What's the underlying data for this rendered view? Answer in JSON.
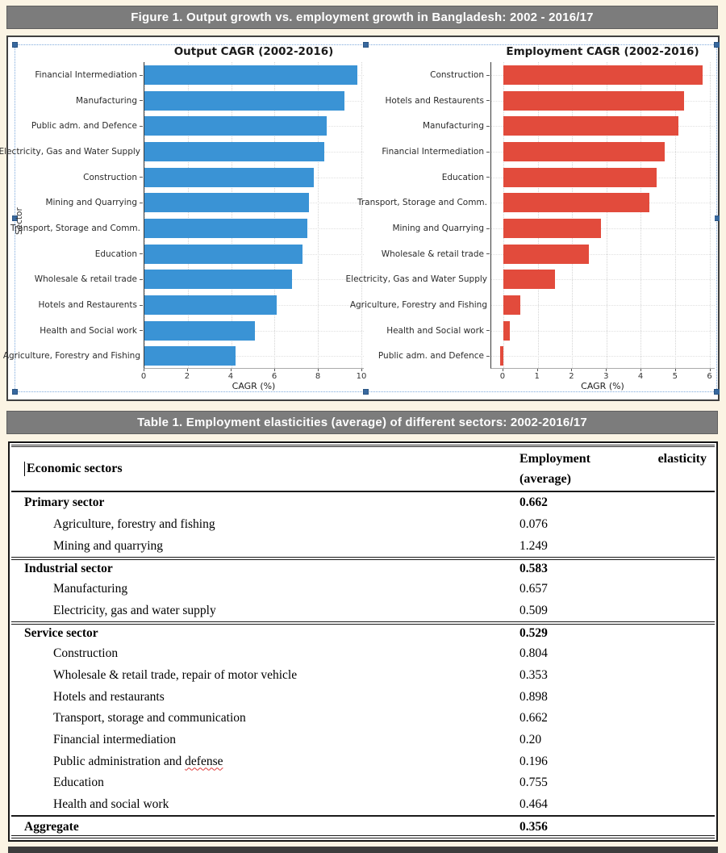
{
  "figure_header": {
    "title": "Figure 1. Output growth vs. employment growth in Bangladesh: 2002 - 2016/17"
  },
  "table_header": {
    "title": "Table 1. Employment elasticities (average) of different sectors: 2002-2016/17"
  },
  "colors": {
    "page_bg": "#fbf4e4",
    "header_bar": "#7c7c7c",
    "blue_bar": "#3a93d5",
    "red_bar": "#e24b3c",
    "selection_blue": "#38699f"
  },
  "chart_data": [
    {
      "type": "bar",
      "orientation": "horizontal",
      "title": "Output CAGR (2002-2016)",
      "xlabel": "CAGR (%)",
      "ylabel": "Sector",
      "bar_color": "#3a93d5",
      "xlim": [
        0,
        10.11
      ],
      "xticks": [
        0,
        2,
        4,
        6,
        8,
        10
      ],
      "grid": true,
      "categories": [
        "Financial Intermediation",
        "Manufacturing",
        "Public adm. and Defence",
        "Electricity, Gas and Water Supply",
        "Construction",
        "Mining and Quarrying",
        "Transport, Storage and Comm.",
        "Education",
        "Wholesale & retail trade",
        "Hotels and Restaurents",
        "Health and Social work",
        "Agriculture, Forestry and Fishing"
      ],
      "values": [
        9.8,
        9.2,
        8.4,
        8.3,
        7.8,
        7.6,
        7.5,
        7.3,
        6.8,
        6.1,
        5.1,
        4.2
      ]
    },
    {
      "type": "bar",
      "orientation": "horizontal",
      "title": "Employment CAGR (2002-2016)",
      "xlabel": "CAGR (%)",
      "ylabel": "",
      "bar_color": "#e24b3c",
      "xlim": [
        -0.35,
        6.15
      ],
      "xticks": [
        0,
        1,
        2,
        3,
        4,
        5,
        6
      ],
      "grid": true,
      "categories": [
        "Construction",
        "Hotels and Restaurents",
        "Manufacturing",
        "Financial Intermediation",
        "Education",
        "Transport, Storage and Comm.",
        "Mining and Quarrying",
        "Wholesale & retail trade",
        "Electricity, Gas and Water Supply",
        "Agriculture, Forestry and Fishing",
        "Health and Social work",
        "Public adm. and Defence"
      ],
      "values": [
        5.8,
        5.25,
        5.1,
        4.7,
        4.45,
        4.25,
        2.85,
        2.5,
        1.5,
        0.5,
        0.18,
        -0.08
      ]
    }
  ],
  "table": {
    "header": {
      "left": "Economic sectors",
      "right_line1_a": "Employment",
      "right_line1_b": "elasticity",
      "right_line2": "(average)"
    },
    "rows": [
      {
        "label": "Primary sector",
        "value": "0.662",
        "bold": true
      },
      {
        "label": "Agriculture, forestry and fishing",
        "value": "0.076",
        "indent": true
      },
      {
        "label": "Mining and quarrying",
        "value": "1.249",
        "indent": true
      },
      {
        "label": "Industrial sector",
        "value": "0.583",
        "bold": true,
        "section_start": true
      },
      {
        "label": "Manufacturing",
        "value": "0.657",
        "indent": true
      },
      {
        "label": "Electricity, gas and water supply",
        "value": "0.509",
        "indent": true
      },
      {
        "label": "Service sector",
        "value": "0.529",
        "bold": true,
        "section_start": true
      },
      {
        "label": "Construction",
        "value": "0.804",
        "indent": true
      },
      {
        "label": "Wholesale & retail trade, repair of motor vehicle",
        "value": "0.353",
        "indent": true
      },
      {
        "label": "Hotels and restaurants",
        "value": "0.898",
        "indent": true
      },
      {
        "label": "Transport, storage and communication",
        "value": "0.662",
        "indent": true
      },
      {
        "label": "Financial intermediation",
        "value": "0.20",
        "indent": true
      },
      {
        "label": "Public administration and defense",
        "value": "0.196",
        "indent": true,
        "wavy_word": "defense"
      },
      {
        "label": "Education",
        "value": "0.755",
        "indent": true
      },
      {
        "label": "Health and social work",
        "value": "0.464",
        "indent": true
      },
      {
        "label": "Aggregate",
        "value": "0.356",
        "bold": true,
        "aggregate": true
      }
    ]
  }
}
